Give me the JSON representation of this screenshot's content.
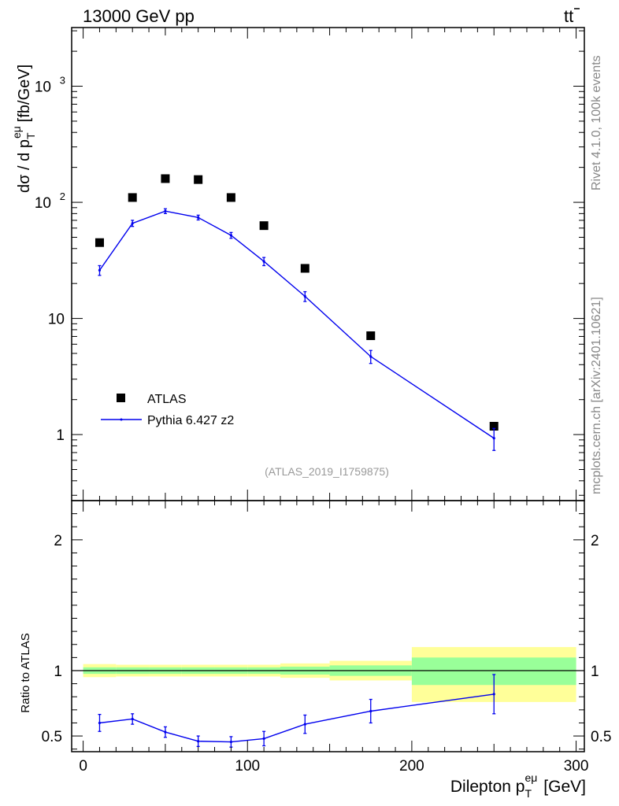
{
  "header": {
    "left": "13000 GeV pp",
    "process_main": "t",
    "process_bar": "t"
  },
  "side_labels": {
    "rivet": "Rivet 4.1.0,  100k events",
    "source": "mcplots.cern.ch [arXiv:2401.10621]"
  },
  "analysis_tag": "(ATLAS_2019_I1759875)",
  "chart_data": [
    {
      "panel": "main",
      "type": "scatter",
      "yscale": "log",
      "ylabel": {
        "main": "dσ / d p",
        "sub": "T",
        "sup": "eμ",
        "unit": "[fb/GeV]"
      },
      "xlim": [
        -7,
        305
      ],
      "ylim": [
        0.27,
        3200
      ],
      "y_tick_labels": [
        {
          "value": 1,
          "label": "1"
        },
        {
          "value": 10,
          "label": "10"
        },
        {
          "value": 100,
          "label": "10",
          "exp": "2"
        },
        {
          "value": 1000,
          "label": "10",
          "exp": "3"
        }
      ],
      "legend": {
        "position": "lower-left",
        "entries": [
          "ATLAS",
          "Pythia 6.427 z2"
        ]
      },
      "series": [
        {
          "name": "ATLAS",
          "style": "marker-square",
          "color": "#000000",
          "x": [
            10,
            30,
            50,
            70,
            90,
            110,
            135,
            175,
            250
          ],
          "y": [
            45,
            110,
            160,
            157,
            110,
            63,
            27,
            7.1,
            1.18
          ]
        },
        {
          "name": "Pythia 6.427 z2",
          "style": "line-errorbar",
          "color": "#0000ee",
          "x": [
            10,
            30,
            50,
            70,
            90,
            110,
            135,
            175,
            250
          ],
          "y": [
            26,
            66,
            84,
            74,
            52,
            31,
            15.5,
            4.7,
            0.93
          ],
          "yerr": [
            2.5,
            4,
            4,
            3.5,
            3,
            2.5,
            1.5,
            0.6,
            0.2
          ]
        }
      ]
    },
    {
      "panel": "ratio",
      "type": "line",
      "ylabel": "Ratio to ATLAS",
      "xlabel": {
        "main": "Dilepton p",
        "sub": "T",
        "sup": "eμ",
        "unit": "[GeV]"
      },
      "xlim": [
        -7,
        305
      ],
      "ylim": [
        0.38,
        2.3
      ],
      "x_ticks": [
        0,
        100,
        200,
        300
      ],
      "y_ticks": [
        0.5,
        1,
        2
      ],
      "bands": [
        {
          "xlo": 0,
          "xhi": 20,
          "inner": [
            0.975,
            1.025
          ],
          "outer": [
            0.95,
            1.05
          ]
        },
        {
          "xlo": 20,
          "xhi": 40,
          "inner": [
            0.975,
            1.025
          ],
          "outer": [
            0.955,
            1.045
          ]
        },
        {
          "xlo": 40,
          "xhi": 60,
          "inner": [
            0.975,
            1.025
          ],
          "outer": [
            0.955,
            1.045
          ]
        },
        {
          "xlo": 60,
          "xhi": 80,
          "inner": [
            0.975,
            1.025
          ],
          "outer": [
            0.955,
            1.045
          ]
        },
        {
          "xlo": 80,
          "xhi": 100,
          "inner": [
            0.975,
            1.025
          ],
          "outer": [
            0.955,
            1.045
          ]
        },
        {
          "xlo": 100,
          "xhi": 120,
          "inner": [
            0.975,
            1.025
          ],
          "outer": [
            0.955,
            1.045
          ]
        },
        {
          "xlo": 120,
          "xhi": 150,
          "inner": [
            0.97,
            1.03
          ],
          "outer": [
            0.945,
            1.055
          ]
        },
        {
          "xlo": 150,
          "xhi": 200,
          "inner": [
            0.96,
            1.04
          ],
          "outer": [
            0.925,
            1.075
          ]
        },
        {
          "xlo": 200,
          "xhi": 300,
          "inner": [
            0.89,
            1.1
          ],
          "outer": [
            0.76,
            1.18
          ]
        }
      ],
      "series": [
        {
          "name": "Pythia 6.427 z2 / ATLAS",
          "color": "#0000ee",
          "x": [
            10,
            30,
            50,
            70,
            90,
            110,
            135,
            175,
            250
          ],
          "y": [
            0.6,
            0.63,
            0.53,
            0.46,
            0.455,
            0.48,
            0.59,
            0.69,
            0.82
          ],
          "yerr": [
            0.065,
            0.04,
            0.04,
            0.04,
            0.04,
            0.055,
            0.07,
            0.09,
            0.15
          ]
        }
      ]
    }
  ]
}
